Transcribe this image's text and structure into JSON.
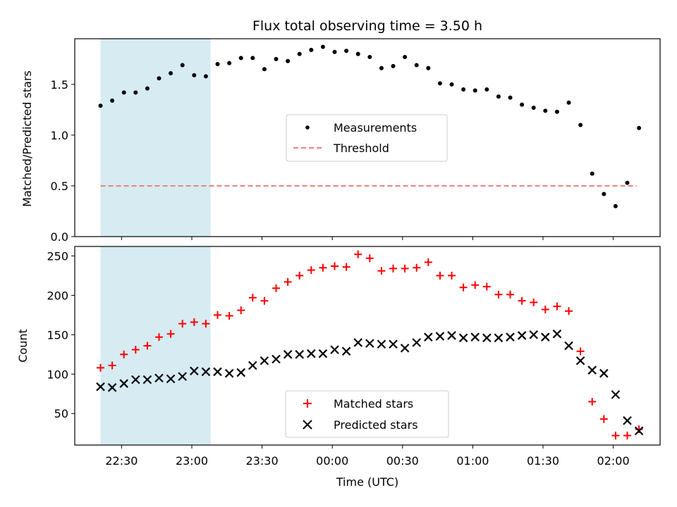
{
  "chart_data": [
    {
      "type": "scatter",
      "title": "Flux total observing time = 3.50 h",
      "xlabel": "",
      "ylabel": "Matched/Predicted stars",
      "ylim": [
        0,
        1.95
      ],
      "yticks": [
        "0.0",
        "0.5",
        "1.0",
        "1.5"
      ],
      "shaded_range": [
        "22:21",
        "23:08"
      ],
      "legend": {
        "placement": "center",
        "entries": [
          "Measurements",
          "Threshold"
        ]
      },
      "threshold": {
        "name": "Threshold",
        "value": 0.5,
        "x_range": [
          "22:21",
          "02:10"
        ],
        "color": "#f08080"
      },
      "series": [
        {
          "name": "Measurements",
          "color": "#000000",
          "x": [
            "22:21",
            "22:26",
            "22:31",
            "22:36",
            "22:41",
            "22:46",
            "22:51",
            "22:56",
            "23:01",
            "23:06",
            "23:11",
            "23:16",
            "23:21",
            "23:26",
            "23:31",
            "23:36",
            "23:41",
            "23:46",
            "23:51",
            "23:56",
            "00:01",
            "00:06",
            "00:11",
            "00:16",
            "00:21",
            "00:26",
            "00:31",
            "00:36",
            "00:41",
            "00:46",
            "00:51",
            "00:56",
            "01:01",
            "01:06",
            "01:11",
            "01:16",
            "01:21",
            "01:26",
            "01:31",
            "01:36",
            "01:41",
            "01:46",
            "01:51",
            "01:56",
            "02:01",
            "02:06",
            "02:11"
          ],
          "values": [
            1.29,
            1.34,
            1.42,
            1.42,
            1.46,
            1.56,
            1.61,
            1.69,
            1.59,
            1.58,
            1.7,
            1.71,
            1.76,
            1.76,
            1.65,
            1.75,
            1.73,
            1.8,
            1.84,
            1.87,
            1.82,
            1.83,
            1.8,
            1.77,
            1.66,
            1.68,
            1.77,
            1.69,
            1.66,
            1.51,
            1.5,
            1.45,
            1.44,
            1.45,
            1.38,
            1.37,
            1.3,
            1.27,
            1.24,
            1.23,
            1.32,
            1.1,
            0.62,
            0.42,
            0.3,
            0.53,
            1.07
          ]
        }
      ]
    },
    {
      "type": "scatter",
      "title": "",
      "xlabel": "Time (UTC)",
      "ylabel": "Count",
      "ylim": [
        10,
        262
      ],
      "yticks": [
        "50",
        "100",
        "150",
        "200",
        "250"
      ],
      "xticks": [
        "22:30",
        "23:00",
        "23:30",
        "00:00",
        "00:30",
        "01:00",
        "01:30",
        "02:00"
      ],
      "shaded_range": [
        "22:21",
        "23:08"
      ],
      "legend": {
        "placement": "lower center",
        "entries": [
          "Matched stars",
          "Predicted stars"
        ]
      },
      "series": [
        {
          "name": "Matched stars",
          "marker": "+",
          "color": "#ff0000",
          "x": [
            "22:21",
            "22:26",
            "22:31",
            "22:36",
            "22:41",
            "22:46",
            "22:51",
            "22:56",
            "23:01",
            "23:06",
            "23:11",
            "23:16",
            "23:21",
            "23:26",
            "23:31",
            "23:36",
            "23:41",
            "23:46",
            "23:51",
            "23:56",
            "00:01",
            "00:06",
            "00:11",
            "00:16",
            "00:21",
            "00:26",
            "00:31",
            "00:36",
            "00:41",
            "00:46",
            "00:51",
            "00:56",
            "01:01",
            "01:06",
            "01:11",
            "01:16",
            "01:21",
            "01:26",
            "01:31",
            "01:36",
            "01:41",
            "01:46",
            "01:51",
            "01:56",
            "02:01",
            "02:06",
            "02:11"
          ],
          "values": [
            108,
            111,
            125,
            131,
            136,
            147,
            151,
            164,
            166,
            164,
            175,
            174,
            181,
            197,
            193,
            209,
            217,
            225,
            232,
            235,
            237,
            236,
            252,
            247,
            231,
            234,
            234,
            235,
            242,
            225,
            225,
            210,
            213,
            211,
            201,
            201,
            193,
            191,
            182,
            186,
            180,
            129,
            65,
            43,
            22,
            22,
            30
          ]
        },
        {
          "name": "Predicted stars",
          "marker": "x",
          "color": "#000000",
          "x": [
            "22:21",
            "22:26",
            "22:31",
            "22:36",
            "22:41",
            "22:46",
            "22:51",
            "22:56",
            "23:01",
            "23:06",
            "23:11",
            "23:16",
            "23:21",
            "23:26",
            "23:31",
            "23:36",
            "23:41",
            "23:46",
            "23:51",
            "23:56",
            "00:01",
            "00:06",
            "00:11",
            "00:16",
            "00:21",
            "00:26",
            "00:31",
            "00:36",
            "00:41",
            "00:46",
            "00:51",
            "00:56",
            "01:01",
            "01:06",
            "01:11",
            "01:16",
            "01:21",
            "01:26",
            "01:31",
            "01:36",
            "01:41",
            "01:46",
            "01:51",
            "01:56",
            "02:01",
            "02:06",
            "02:11"
          ],
          "values": [
            84,
            83,
            88,
            93,
            93,
            95,
            94,
            97,
            104,
            103,
            103,
            101,
            102,
            111,
            117,
            119,
            125,
            125,
            126,
            126,
            131,
            129,
            140,
            139,
            138,
            138,
            133,
            140,
            147,
            148,
            149,
            146,
            147,
            146,
            146,
            147,
            149,
            150,
            147,
            151,
            136,
            117,
            105,
            101,
            74,
            41,
            28
          ]
        }
      ]
    }
  ]
}
